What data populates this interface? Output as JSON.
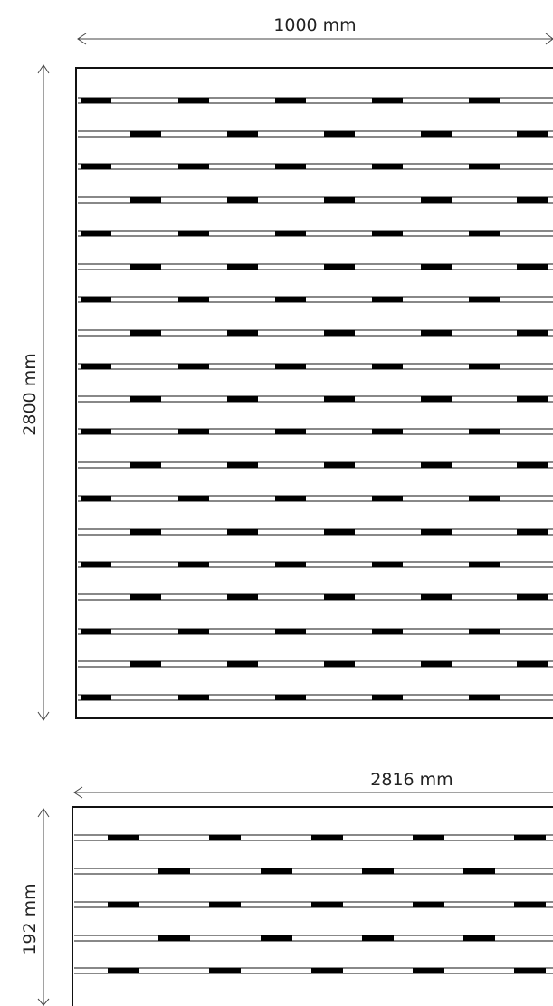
{
  "panel_top": {
    "width_label": "1000 mm",
    "height_label": "2800 mm"
  },
  "panel_bottom": {
    "width_label": "2816 mm",
    "height_label": "192 mm"
  },
  "colors": {
    "line": "#111111",
    "slot": "#000000",
    "background": "#ffffff",
    "dimension_line": "#444444"
  }
}
